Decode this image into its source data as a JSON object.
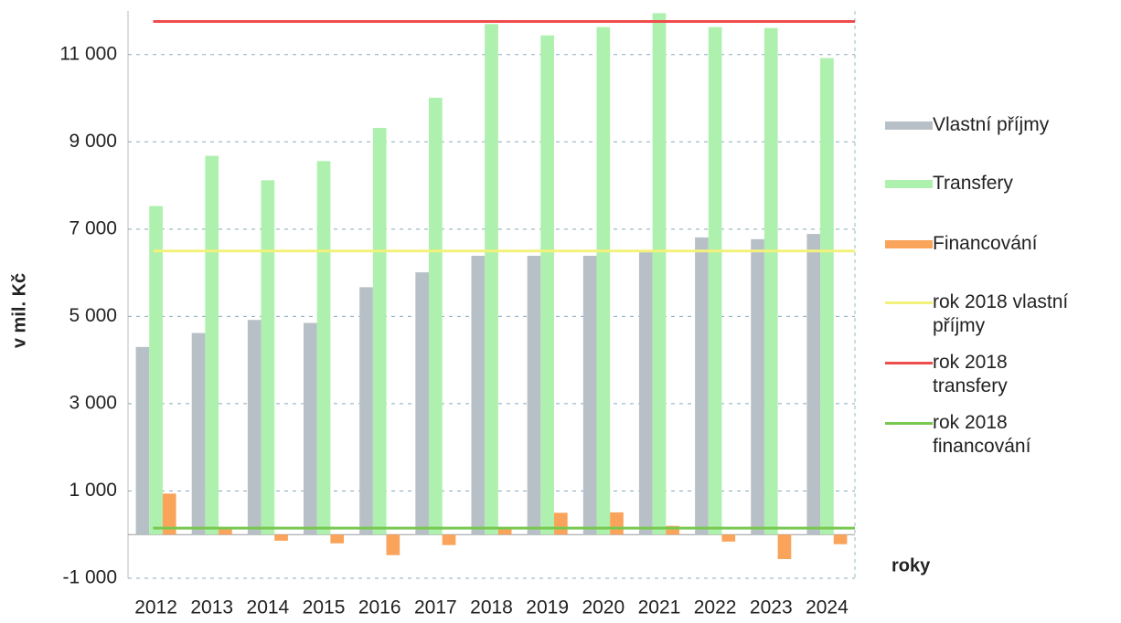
{
  "chart_data": {
    "type": "bar",
    "y_label": "v mil. Kč",
    "x_label": "roky",
    "categories": [
      "2012",
      "2013",
      "2014",
      "2015",
      "2016",
      "2017",
      "2018",
      "2019",
      "2020",
      "2021",
      "2022",
      "2023",
      "2024"
    ],
    "series": [
      {
        "name": "Vlastní příjmy",
        "color": "#b7c0c7",
        "values": [
          4300,
          4620,
          4920,
          4850,
          5670,
          6010,
          6390,
          6390,
          6390,
          6470,
          6810,
          6770,
          6890
        ]
      },
      {
        "name": "Transfery",
        "color": "#aef0ae",
        "values": [
          7530,
          8680,
          8120,
          8560,
          9320,
          10010,
          11700,
          11440,
          11630,
          11950,
          11630,
          11610,
          10920
        ]
      },
      {
        "name": "Financování",
        "color": "#f9a45a",
        "values": [
          940,
          160,
          -140,
          -200,
          -470,
          -240,
          160,
          500,
          510,
          200,
          -160,
          -560,
          -220
        ]
      }
    ],
    "reference_lines": [
      {
        "name": "rok 2018 vlastní příjmy",
        "color": "#f2f27a",
        "value": 6500
      },
      {
        "name": "rok 2018 transfery",
        "color": "#ef4c4c",
        "value": 11760
      },
      {
        "name": "rok 2018 financování",
        "color": "#78c850",
        "value": 150
      }
    ],
    "ylim": [
      -1000,
      12000
    ],
    "yticks": [
      {
        "value": -1000,
        "label": "-1 000"
      },
      {
        "value": 1000,
        "label": "1 000"
      },
      {
        "value": 3000,
        "label": "3 000"
      },
      {
        "value": 5000,
        "label": "5 000"
      },
      {
        "value": 7000,
        "label": "7 000"
      },
      {
        "value": 9000,
        "label": "9 000"
      },
      {
        "value": 11000,
        "label": "11 000"
      }
    ],
    "grid": true
  }
}
